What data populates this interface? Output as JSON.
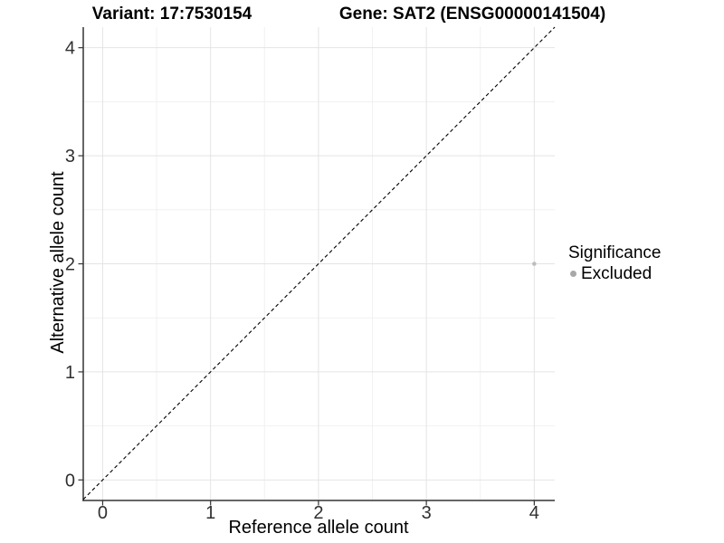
{
  "titles": {
    "variant": "Variant: 17:7530154",
    "gene": "Gene: SAT2 (ENSG00000141504)"
  },
  "chart_data": {
    "type": "scatter",
    "xlabel": "Reference allele count",
    "ylabel": "Alternative allele count",
    "xlim": [
      -0.18,
      4.19
    ],
    "ylim": [
      -0.19,
      4.19
    ],
    "x_ticks": [
      0,
      1,
      2,
      3,
      4
    ],
    "y_ticks": [
      0,
      1,
      2,
      3,
      4
    ],
    "x_minor_ticks": [
      0.5,
      1.5,
      2.5,
      3.5
    ],
    "y_minor_ticks": [
      0.5,
      1.5,
      2.5,
      3.5
    ],
    "grid": true,
    "points": [
      {
        "x": 4,
        "y": 2,
        "significance": "Excluded"
      }
    ],
    "identity_line": {
      "type": "abline",
      "slope": 1,
      "intercept": 0,
      "style": "dashed",
      "color": "#000000"
    },
    "legend": {
      "title": "Significance",
      "position": "right",
      "entries": [
        {
          "label": "Excluded",
          "color": "#a8a8a8"
        }
      ]
    },
    "colors": {
      "excluded_point": "#bdbdbd",
      "grid_major": "#e4e4e4",
      "grid_minor": "#f1f1f1",
      "axis_line": "#333333",
      "tick_label": "#303030"
    }
  }
}
